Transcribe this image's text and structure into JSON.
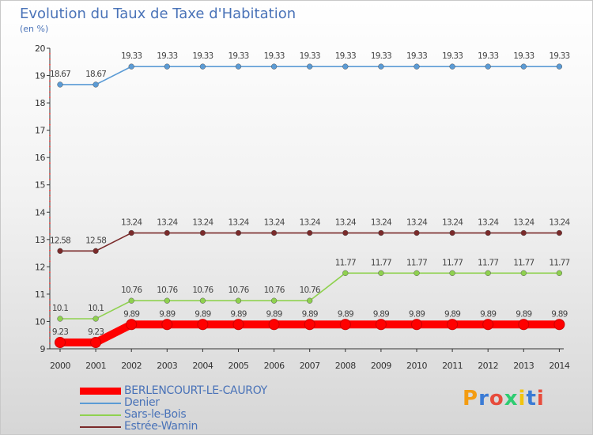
{
  "header": {
    "title": "Evolution du Taux de Taxe d'Habitation",
    "subtitle": "(en %)"
  },
  "chart_data": {
    "type": "line",
    "title": "Evolution du Taux de Taxe d'Habitation",
    "ylabel": "(en %)",
    "xlabel": "",
    "ylim": [
      9,
      20
    ],
    "yticks": [
      9,
      10,
      11,
      12,
      13,
      14,
      15,
      16,
      17,
      18,
      19,
      20
    ],
    "x": [
      "2000",
      "2001",
      "2002",
      "2003",
      "2004",
      "2005",
      "2006",
      "2007",
      "2008",
      "2009",
      "2010",
      "2011",
      "2012",
      "2013",
      "2014"
    ],
    "grid": false,
    "legend_position": "bottom-left",
    "series": [
      {
        "name": "BERLENCOURT-LE-CAUROY",
        "color": "#ff0000",
        "emphasis": true,
        "values": [
          9.23,
          9.23,
          9.89,
          9.89,
          9.89,
          9.89,
          9.89,
          9.89,
          9.89,
          9.89,
          9.89,
          9.89,
          9.89,
          9.89,
          9.89
        ],
        "labels": [
          "9.23",
          "9.23",
          "9.89",
          "9.89",
          "9.89",
          "9.89",
          "9.89",
          "9.89",
          "9.89",
          "9.89",
          "9.89",
          "9.89",
          "9.89",
          "9.89",
          "9.89"
        ]
      },
      {
        "name": "Denier",
        "color": "#5b9bd5",
        "values": [
          18.67,
          18.67,
          19.33,
          19.33,
          19.33,
          19.33,
          19.33,
          19.33,
          19.33,
          19.33,
          19.33,
          19.33,
          19.33,
          19.33,
          19.33
        ],
        "labels": [
          "18.67",
          "18.67",
          "19.33",
          "19.33",
          "19.33",
          "19.33",
          "19.33",
          "19.33",
          "19.33",
          "19.33",
          "19.33",
          "19.33",
          "19.33",
          "19.33",
          "19.33"
        ]
      },
      {
        "name": "Sars-le-Bois",
        "color": "#8fd14f",
        "values": [
          10.1,
          10.1,
          10.76,
          10.76,
          10.76,
          10.76,
          10.76,
          10.76,
          11.77,
          11.77,
          11.77,
          11.77,
          11.77,
          11.77,
          11.77
        ],
        "labels": [
          "10.1",
          "10.1",
          "10.76",
          "10.76",
          "10.76",
          "10.76",
          "10.76",
          "10.76",
          "11.77",
          "11.77",
          "11.77",
          "11.77",
          "11.77",
          "11.77",
          "11.77"
        ]
      },
      {
        "name": "Estrée-Wamin",
        "color": "#7a2a2a",
        "values": [
          12.58,
          12.58,
          13.24,
          13.24,
          13.24,
          13.24,
          13.24,
          13.24,
          13.24,
          13.24,
          13.24,
          13.24,
          13.24,
          13.24,
          13.24
        ],
        "labels": [
          "12.58",
          "12.58",
          "13.24",
          "13.24",
          "13.24",
          "13.24",
          "13.24",
          "13.24",
          "13.24",
          "13.24",
          "13.24",
          "13.24",
          "13.24",
          "13.24",
          "13.24"
        ]
      }
    ]
  },
  "logo": {
    "text": "Proxiti"
  }
}
